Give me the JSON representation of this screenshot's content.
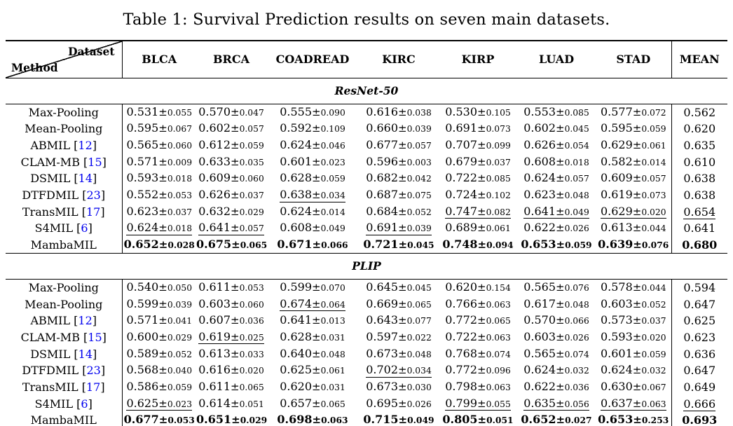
{
  "caption": "Table 1: Survival Prediction results on seven main datasets.",
  "header": {
    "corner_top": "Dataset",
    "corner_bottom": "Method",
    "dataset_columns": [
      "BLCA",
      "BRCA",
      "COADREAD",
      "KIRC",
      "KIRP",
      "LUAD",
      "STAD"
    ],
    "mean_column": "MEAN"
  },
  "colors": {
    "text": "#000000",
    "background": "#FFFFFF",
    "citation": "#0000EE"
  },
  "sections": [
    {
      "name": "ResNet-50",
      "rows": [
        {
          "method": "Max-Pooling",
          "cite": "",
          "cells": [
            [
              "0.531",
              "0.055",
              "n"
            ],
            [
              "0.570",
              "0.047",
              "n"
            ],
            [
              "0.555",
              "0.090",
              "n"
            ],
            [
              "0.616",
              "0.038",
              "n"
            ],
            [
              "0.530",
              "0.105",
              "n"
            ],
            [
              "0.553",
              "0.085",
              "n"
            ],
            [
              "0.577",
              "0.072",
              "n"
            ]
          ],
          "mean": [
            "0.562",
            "n"
          ]
        },
        {
          "method": "Mean-Pooling",
          "cite": "",
          "cells": [
            [
              "0.595",
              "0.067",
              "n"
            ],
            [
              "0.602",
              "0.057",
              "n"
            ],
            [
              "0.592",
              "0.109",
              "n"
            ],
            [
              "0.660",
              "0.039",
              "n"
            ],
            [
              "0.691",
              "0.073",
              "n"
            ],
            [
              "0.602",
              "0.045",
              "n"
            ],
            [
              "0.595",
              "0.059",
              "n"
            ]
          ],
          "mean": [
            "0.620",
            "n"
          ]
        },
        {
          "method": "ABMIL",
          "cite": "12",
          "cells": [
            [
              "0.565",
              "0.060",
              "n"
            ],
            [
              "0.612",
              "0.059",
              "n"
            ],
            [
              "0.624",
              "0.046",
              "n"
            ],
            [
              "0.677",
              "0.057",
              "n"
            ],
            [
              "0.707",
              "0.099",
              "n"
            ],
            [
              "0.626",
              "0.054",
              "n"
            ],
            [
              "0.629",
              "0.061",
              "n"
            ]
          ],
          "mean": [
            "0.635",
            "n"
          ]
        },
        {
          "method": "CLAM-MB",
          "cite": "15",
          "cells": [
            [
              "0.571",
              "0.009",
              "n"
            ],
            [
              "0.633",
              "0.035",
              "n"
            ],
            [
              "0.601",
              "0.023",
              "n"
            ],
            [
              "0.596",
              "0.003",
              "n"
            ],
            [
              "0.679",
              "0.037",
              "n"
            ],
            [
              "0.608",
              "0.018",
              "n"
            ],
            [
              "0.582",
              "0.014",
              "n"
            ]
          ],
          "mean": [
            "0.610",
            "n"
          ]
        },
        {
          "method": "DSMIL",
          "cite": "14",
          "cells": [
            [
              "0.593",
              "0.018",
              "n"
            ],
            [
              "0.609",
              "0.060",
              "n"
            ],
            [
              "0.628",
              "0.059",
              "n"
            ],
            [
              "0.682",
              "0.042",
              "n"
            ],
            [
              "0.722",
              "0.085",
              "n"
            ],
            [
              "0.624",
              "0.057",
              "n"
            ],
            [
              "0.609",
              "0.057",
              "n"
            ]
          ],
          "mean": [
            "0.638",
            "n"
          ]
        },
        {
          "method": "DTFDMIL",
          "cite": "23",
          "cells": [
            [
              "0.552",
              "0.053",
              "n"
            ],
            [
              "0.626",
              "0.037",
              "n"
            ],
            [
              "0.638",
              "0.034",
              "u"
            ],
            [
              "0.687",
              "0.075",
              "n"
            ],
            [
              "0.724",
              "0.102",
              "n"
            ],
            [
              "0.623",
              "0.048",
              "n"
            ],
            [
              "0.619",
              "0.073",
              "n"
            ]
          ],
          "mean": [
            "0.638",
            "n"
          ]
        },
        {
          "method": "TransMIL",
          "cite": "17",
          "cells": [
            [
              "0.623",
              "0.037",
              "n"
            ],
            [
              "0.632",
              "0.029",
              "n"
            ],
            [
              "0.624",
              "0.014",
              "n"
            ],
            [
              "0.684",
              "0.052",
              "n"
            ],
            [
              "0.747",
              "0.082",
              "u"
            ],
            [
              "0.641",
              "0.049",
              "u"
            ],
            [
              "0.629",
              "0.020",
              "u"
            ]
          ],
          "mean": [
            "0.654",
            "u"
          ]
        },
        {
          "method": "S4MIL",
          "cite": "6",
          "cells": [
            [
              "0.624",
              "0.018",
              "u"
            ],
            [
              "0.641",
              "0.057",
              "u"
            ],
            [
              "0.608",
              "0.049",
              "n"
            ],
            [
              "0.691",
              "0.039",
              "u"
            ],
            [
              "0.689",
              "0.061",
              "n"
            ],
            [
              "0.622",
              "0.026",
              "n"
            ],
            [
              "0.613",
              "0.044",
              "n"
            ]
          ],
          "mean": [
            "0.641",
            "n"
          ]
        },
        {
          "method": "MambaMIL",
          "cite": "",
          "cells": [
            [
              "0.652",
              "0.028",
              "b"
            ],
            [
              "0.675",
              "0.065",
              "b"
            ],
            [
              "0.671",
              "0.066",
              "b"
            ],
            [
              "0.721",
              "0.045",
              "b"
            ],
            [
              "0.748",
              "0.094",
              "b"
            ],
            [
              "0.653",
              "0.059",
              "b"
            ],
            [
              "0.639",
              "0.076",
              "b"
            ]
          ],
          "mean": [
            "0.680",
            "b"
          ]
        }
      ]
    },
    {
      "name": "PLIP",
      "rows": [
        {
          "method": "Max-Pooling",
          "cite": "",
          "cells": [
            [
              "0.540",
              "0.050",
              "n"
            ],
            [
              "0.611",
              "0.053",
              "n"
            ],
            [
              "0.599",
              "0.070",
              "n"
            ],
            [
              "0.645",
              "0.045",
              "n"
            ],
            [
              "0.620",
              "0.154",
              "n"
            ],
            [
              "0.565",
              "0.076",
              "n"
            ],
            [
              "0.578",
              "0.044",
              "n"
            ]
          ],
          "mean": [
            "0.594",
            "n"
          ]
        },
        {
          "method": "Mean-Pooling",
          "cite": "",
          "cells": [
            [
              "0.599",
              "0.039",
              "n"
            ],
            [
              "0.603",
              "0.060",
              "n"
            ],
            [
              "0.674",
              "0.064",
              "u"
            ],
            [
              "0.669",
              "0.065",
              "n"
            ],
            [
              "0.766",
              "0.063",
              "n"
            ],
            [
              "0.617",
              "0.048",
              "n"
            ],
            [
              "0.603",
              "0.052",
              "n"
            ]
          ],
          "mean": [
            "0.647",
            "n"
          ]
        },
        {
          "method": "ABMIL",
          "cite": "12",
          "cells": [
            [
              "0.571",
              "0.041",
              "n"
            ],
            [
              "0.607",
              "0.036",
              "n"
            ],
            [
              "0.641",
              "0.013",
              "n"
            ],
            [
              "0.643",
              "0.077",
              "n"
            ],
            [
              "0.772",
              "0.065",
              "n"
            ],
            [
              "0.570",
              "0.066",
              "n"
            ],
            [
              "0.573",
              "0.037",
              "n"
            ]
          ],
          "mean": [
            "0.625",
            "n"
          ]
        },
        {
          "method": "CLAM-MB",
          "cite": "15",
          "cells": [
            [
              "0.600",
              "0.029",
              "n"
            ],
            [
              "0.619",
              "0.025",
              "u"
            ],
            [
              "0.628",
              "0.031",
              "n"
            ],
            [
              "0.597",
              "0.022",
              "n"
            ],
            [
              "0.722",
              "0.063",
              "n"
            ],
            [
              "0.603",
              "0.026",
              "n"
            ],
            [
              "0.593",
              "0.020",
              "n"
            ]
          ],
          "mean": [
            "0.623",
            "n"
          ]
        },
        {
          "method": "DSMIL",
          "cite": "14",
          "cells": [
            [
              "0.589",
              "0.052",
              "n"
            ],
            [
              "0.613",
              "0.033",
              "n"
            ],
            [
              "0.640",
              "0.048",
              "n"
            ],
            [
              "0.673",
              "0.048",
              "n"
            ],
            [
              "0.768",
              "0.074",
              "n"
            ],
            [
              "0.565",
              "0.074",
              "n"
            ],
            [
              "0.601",
              "0.059",
              "n"
            ]
          ],
          "mean": [
            "0.636",
            "n"
          ]
        },
        {
          "method": "DTFDMIL",
          "cite": "23",
          "cells": [
            [
              "0.568",
              "0.040",
              "n"
            ],
            [
              "0.616",
              "0.020",
              "n"
            ],
            [
              "0.625",
              "0.061",
              "n"
            ],
            [
              "0.702",
              "0.034",
              "u"
            ],
            [
              "0.772",
              "0.096",
              "n"
            ],
            [
              "0.624",
              "0.032",
              "n"
            ],
            [
              "0.624",
              "0.032",
              "n"
            ]
          ],
          "mean": [
            "0.647",
            "n"
          ]
        },
        {
          "method": "TransMIL",
          "cite": "17",
          "cells": [
            [
              "0.586",
              "0.059",
              "n"
            ],
            [
              "0.611",
              "0.065",
              "n"
            ],
            [
              "0.620",
              "0.031",
              "n"
            ],
            [
              "0.673",
              "0.030",
              "n"
            ],
            [
              "0.798",
              "0.063",
              "n"
            ],
            [
              "0.622",
              "0.036",
              "n"
            ],
            [
              "0.630",
              "0.067",
              "n"
            ]
          ],
          "mean": [
            "0.649",
            "n"
          ]
        },
        {
          "method": "S4MIL",
          "cite": "6",
          "cells": [
            [
              "0.625",
              "0.023",
              "u"
            ],
            [
              "0.614",
              "0.051",
              "n"
            ],
            [
              "0.657",
              "0.065",
              "n"
            ],
            [
              "0.695",
              "0.026",
              "n"
            ],
            [
              "0.799",
              "0.055",
              "u"
            ],
            [
              "0.635",
              "0.056",
              "u"
            ],
            [
              "0.637",
              "0.063",
              "u"
            ]
          ],
          "mean": [
            "0.666",
            "u"
          ]
        },
        {
          "method": "MambaMIL",
          "cite": "",
          "cells": [
            [
              "0.677",
              "0.053",
              "b"
            ],
            [
              "0.651",
              "0.029",
              "b"
            ],
            [
              "0.698",
              "0.063",
              "b"
            ],
            [
              "0.715",
              "0.049",
              "b"
            ],
            [
              "0.805",
              "0.051",
              "b"
            ],
            [
              "0.652",
              "0.027",
              "b"
            ],
            [
              "0.653",
              "0.253",
              "b"
            ]
          ],
          "mean": [
            "0.693",
            "b"
          ]
        }
      ]
    }
  ]
}
